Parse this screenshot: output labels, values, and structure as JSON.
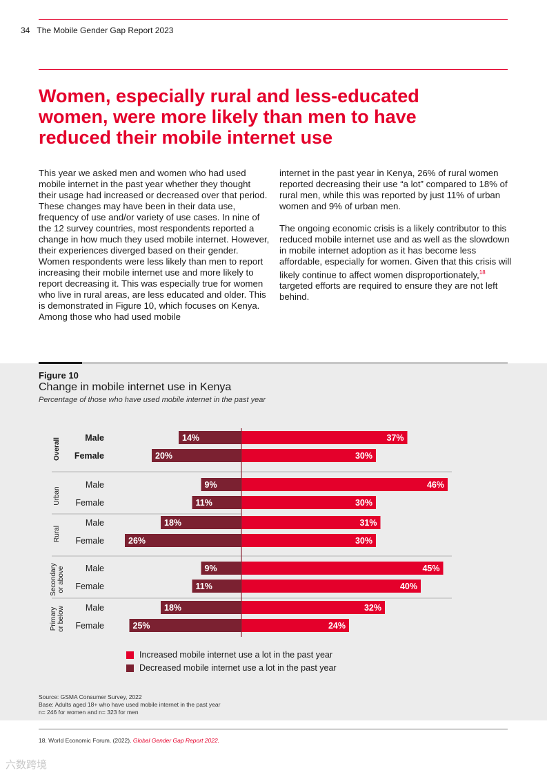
{
  "header": {
    "page_number": "34",
    "report_title": "The Mobile Gender Gap Report 2023"
  },
  "headline": "Women, especially rural and less-educated women, were more likely than men to have reduced their mobile internet use",
  "body": {
    "left_p1": "This year we asked men and women who had used mobile internet in the past year whether they thought their usage had increased or decreased over that period. These changes may have been in their data use, frequency of use and/or variety of use cases. In nine of the 12 survey countries, most respondents reported a change in how much they used mobile internet. However, their experiences diverged based on their gender. Women respondents were less likely than men to report increasing their mobile internet use and more likely to report decreasing it. This was especially true for women who live in rural areas, are less educated and older. This is demonstrated in Figure 10, which focuses on Kenya. Among those who had used mobile",
    "right_p1": "internet in the past year in Kenya, 26% of rural women reported decreasing their use “a lot” compared to 18% of rural men, while this was reported by just 11% of urban women and 9% of urban men.",
    "right_p2_a": "The ongoing economic crisis is a likely contributor to this reduced mobile internet use and as well as the slowdown in mobile internet adoption as it has become less affordable, especially for women. Given that this crisis will likely continue to affect women disproportionately,",
    "right_p2_sup": "18",
    "right_p2_b": " targeted efforts are required to ensure they are not left behind."
  },
  "figure": {
    "number": "Figure 10",
    "title": "Change in mobile internet use in Kenya",
    "subtitle": "Percentage of those who have used mobile internet in the past year"
  },
  "colors": {
    "accent": "#e4002b",
    "increased": "#e4002b",
    "decreased": "#7b2131",
    "figure_bg": "#ececec"
  },
  "chart_data": {
    "type": "bar",
    "orientation": "horizontal-diverging",
    "groups": [
      {
        "name": "Overall",
        "bold": true,
        "rows": [
          {
            "label": "Male",
            "decreased": 14,
            "increased": 37
          },
          {
            "label": "Female",
            "decreased": 20,
            "increased": 30
          }
        ]
      },
      {
        "name": "Urban",
        "bold": false,
        "rows": [
          {
            "label": "Male",
            "decreased": 9,
            "increased": 46
          },
          {
            "label": "Female",
            "decreased": 11,
            "increased": 30
          }
        ]
      },
      {
        "name": "Rural",
        "bold": false,
        "rows": [
          {
            "label": "Male",
            "decreased": 18,
            "increased": 31
          },
          {
            "label": "Female",
            "decreased": 26,
            "increased": 30
          }
        ]
      },
      {
        "name": "Secondary or above",
        "bold": false,
        "rows": [
          {
            "label": "Male",
            "decreased": 9,
            "increased": 45
          },
          {
            "label": "Female",
            "decreased": 11,
            "increased": 40
          }
        ]
      },
      {
        "name": "Primary or below",
        "bold": false,
        "rows": [
          {
            "label": "Male",
            "decreased": 18,
            "increased": 32
          },
          {
            "label": "Female",
            "decreased": 25,
            "increased": 24
          }
        ]
      }
    ],
    "series": [
      {
        "name": "Increased mobile internet use a lot in the past year",
        "key": "increased"
      },
      {
        "name": "Decreased mobile internet use a lot in the past year",
        "key": "decreased"
      }
    ],
    "value_suffix": "%"
  },
  "notes": {
    "source": "Source: GSMA Consumer Survey, 2022",
    "base": "Base: Adults aged 18+ who have used mobile internet in the past year",
    "sample": "n= 246 for women and n= 323 for men"
  },
  "footnote": {
    "prefix": "18.   World Economic Forum. (2022). ",
    "source": "Global Gender Gap Report 2022."
  },
  "watermark": "六数跨境"
}
